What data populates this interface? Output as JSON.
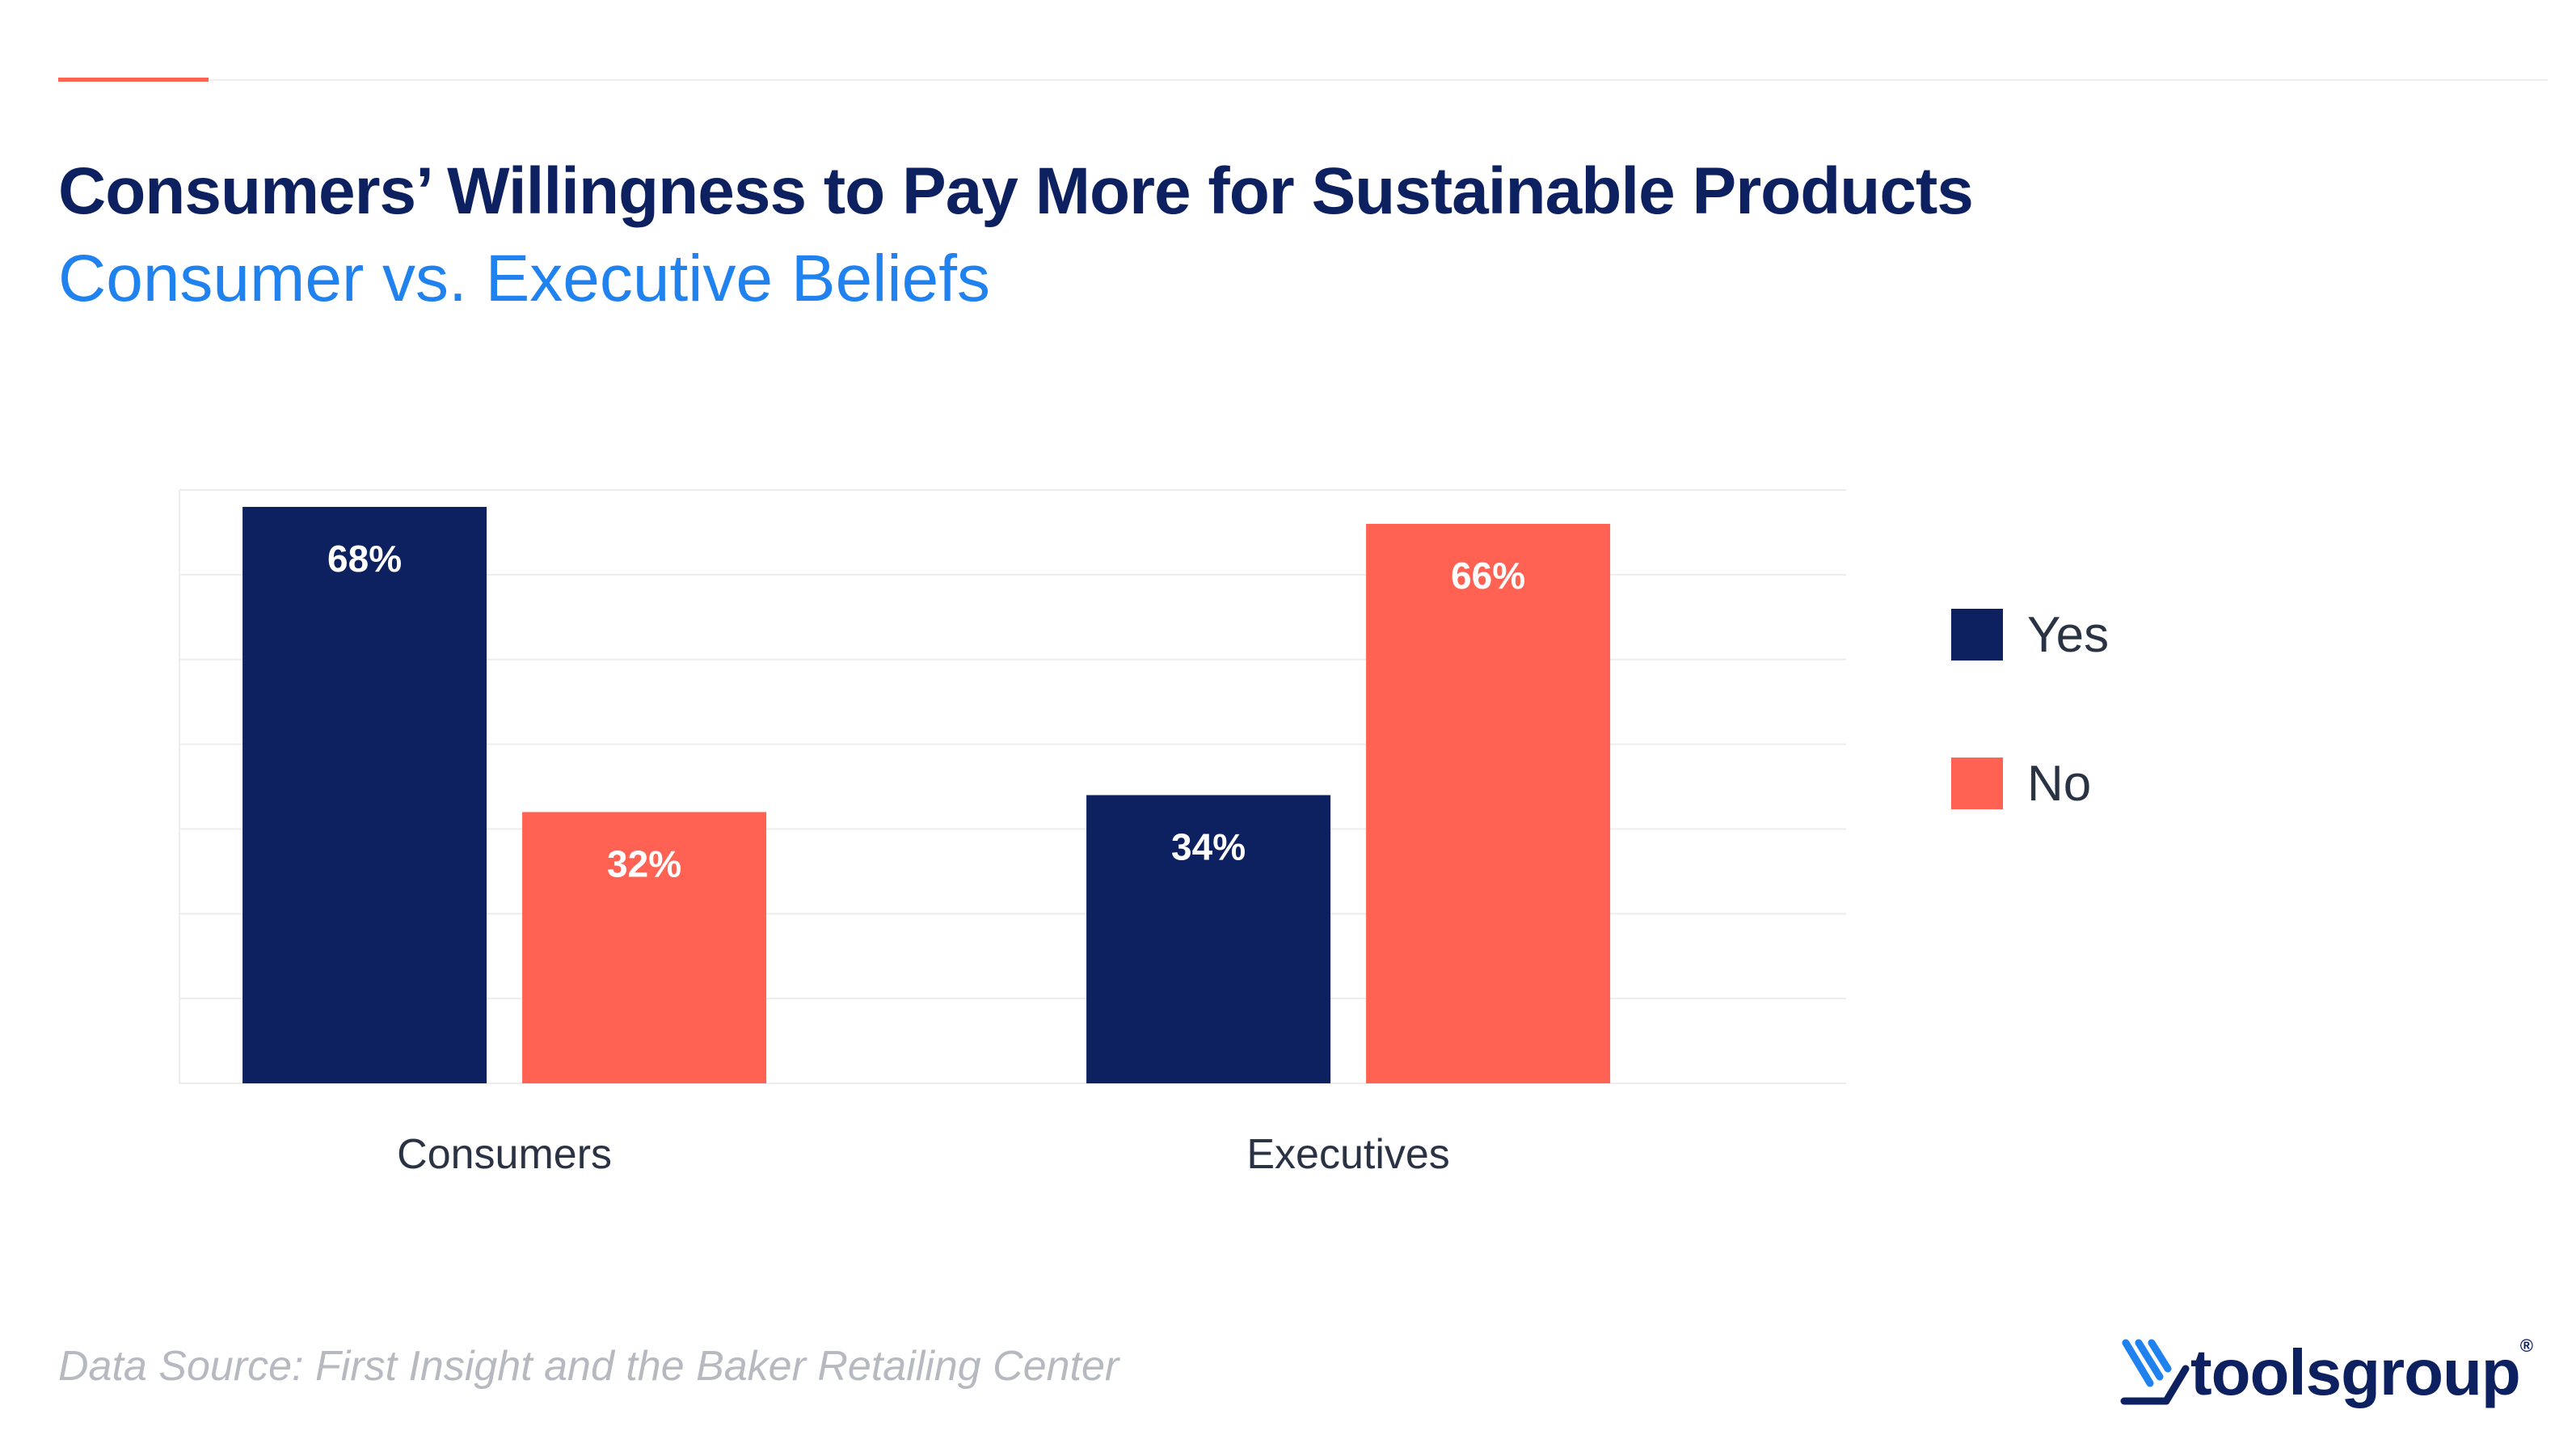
{
  "header": {
    "title": "Consumers’ Willingness to Pay More for Sustainable Products",
    "subtitle": "Consumer vs. Executive Beliefs"
  },
  "footer": {
    "source": "Data Source: First Insight and the Baker Retailing Center",
    "logo_text": "toolsgroup",
    "logo_mark": "®"
  },
  "colors": {
    "yes": "#0d2060",
    "no": "#ff6252",
    "accent": "#ff6250",
    "title": "#0d2060",
    "subtitle": "#1f82ef"
  },
  "chart_data": {
    "type": "bar",
    "categories": [
      "Consumers",
      "Executives"
    ],
    "series": [
      {
        "name": "Yes",
        "values": [
          68,
          34
        ],
        "labels": [
          "68%",
          "34%"
        ]
      },
      {
        "name": "No",
        "values": [
          32,
          66
        ],
        "labels": [
          "32%",
          "66%"
        ]
      }
    ],
    "ylim": [
      0,
      70
    ],
    "grid": true,
    "legend_position": "right"
  }
}
